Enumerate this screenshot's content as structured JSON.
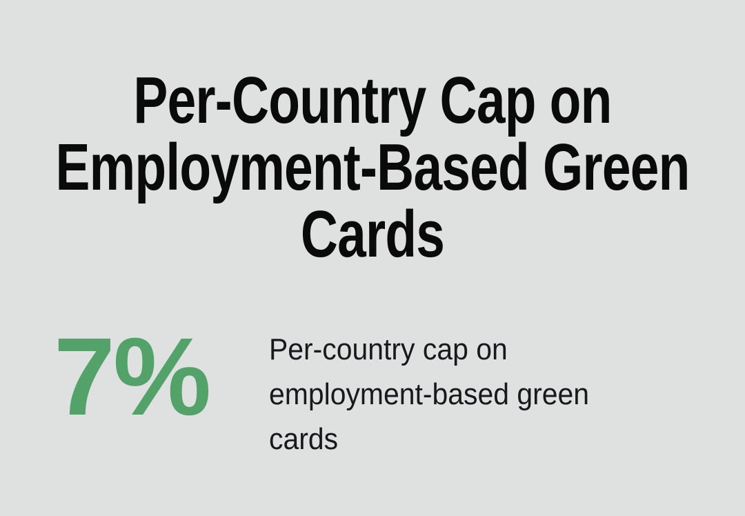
{
  "page": {
    "background_color": "#dfe0e0"
  },
  "header": {
    "title": "Per-Country Cap on Employment-Based Green Cards",
    "title_lines": [
      "Per-Country Cap on",
      "Employment-Based Green",
      "Cards"
    ],
    "title_color": "#0a0a0a"
  },
  "stat": {
    "value": "7%",
    "value_color": "#52a269",
    "description": "Per-country cap on employment-based green cards",
    "description_color": "#19191d"
  },
  "chart_data": {
    "type": "table",
    "title": "Per-Country Cap on Employment-Based Green Cards",
    "columns": [
      "value",
      "label"
    ],
    "rows": [
      [
        "7%",
        "Per-country cap on employment-based green cards"
      ]
    ],
    "notes": "Single big-number infographic stat; 7 percent shown in green accent"
  }
}
